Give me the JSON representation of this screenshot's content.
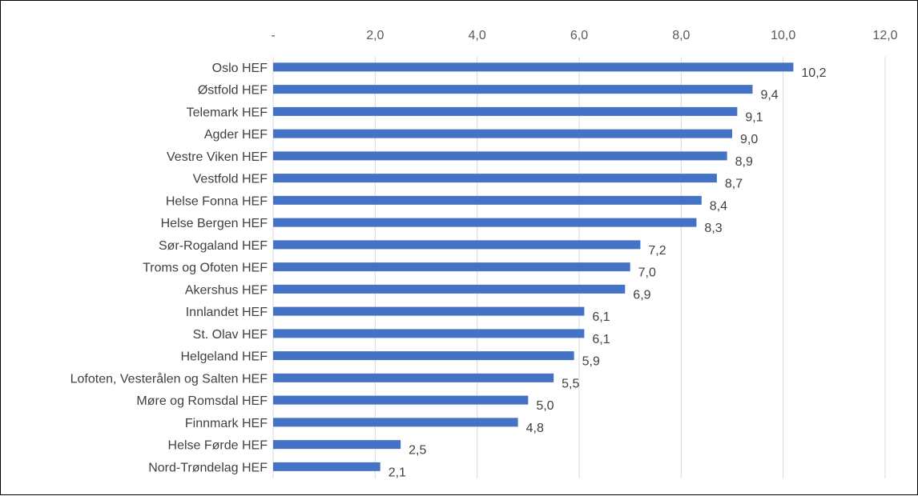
{
  "chart_data": {
    "type": "bar",
    "orientation": "horizontal",
    "title": "",
    "xlabel": "",
    "ylabel": "",
    "xlim": [
      0,
      12
    ],
    "x_ticks": [
      0,
      2,
      4,
      6,
      8,
      10,
      12
    ],
    "x_tick_labels": [
      "-",
      "2,0",
      "4,0",
      "6,0",
      "8,0",
      "10,0",
      "12,0"
    ],
    "x_axis_position": "top",
    "grid": "vertical",
    "legend": "none",
    "bar_color": "#4472C4",
    "categories": [
      "Oslo HEF",
      "Østfold HEF",
      "Telemark HEF",
      "Agder HEF",
      "Vestre Viken HEF",
      "Vestfold HEF",
      "Helse Fonna HEF",
      "Helse Bergen HEF",
      "Sør-Rogaland HEF",
      "Troms og Ofoten HEF",
      "Akershus HEF",
      "Innlandet HEF",
      "St. Olav HEF",
      "Helgeland HEF",
      "Lofoten, Vesterålen og Salten HEF",
      "Møre og Romsdal HEF",
      "Finnmark HEF",
      "Helse Førde HEF",
      "Nord-Trøndelag HEF"
    ],
    "values": [
      10.2,
      9.4,
      9.1,
      9.0,
      8.9,
      8.7,
      8.4,
      8.3,
      7.2,
      7.0,
      6.9,
      6.1,
      6.1,
      5.9,
      5.5,
      5.0,
      4.8,
      2.5,
      2.1
    ],
    "data_labels": [
      "10,2",
      "9,4",
      "9,1",
      "9,0",
      "8,9",
      "8,7",
      "8,4",
      "8,3",
      "7,2",
      "7,0",
      "6,9",
      "6,1",
      "6,1",
      "5,9",
      "5,5",
      "5,0",
      "4,8",
      "2,5",
      "2,1"
    ]
  }
}
